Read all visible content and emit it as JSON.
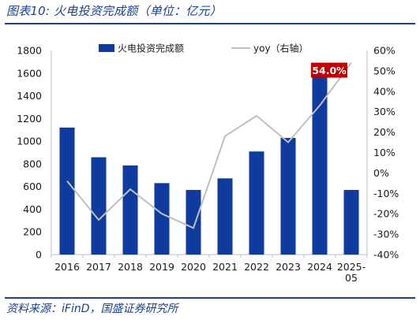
{
  "figure": {
    "title": "图表10:  火电投资完成额（单位：亿元）",
    "source": "资料来源：iFinD，国盛证券研究所"
  },
  "chart_data": {
    "type": "bar",
    "categories": [
      "2016",
      "2017",
      "2018",
      "2019",
      "2020",
      "2021",
      "2022",
      "2023",
      "2024",
      "2025-05"
    ],
    "category_labels": [
      [
        "2016"
      ],
      [
        "2017"
      ],
      [
        "2018"
      ],
      [
        "2019"
      ],
      [
        "2020"
      ],
      [
        "2021"
      ],
      [
        "2022"
      ],
      [
        "2023"
      ],
      [
        "2024"
      ],
      [
        "2025-",
        "05"
      ]
    ],
    "series": [
      {
        "name": "火电投资完成额",
        "type": "bar",
        "axis": "left",
        "color": "#0f3a9e",
        "values": [
          1120,
          858,
          786,
          630,
          570,
          672,
          909,
          1029,
          1590,
          570
        ]
      },
      {
        "name": "yoy（右轴）",
        "type": "line",
        "axis": "right",
        "color": "#bfbfbf",
        "values": [
          -4,
          -23,
          -8,
          -20,
          -27,
          18,
          28,
          15,
          33,
          54
        ]
      }
    ],
    "y_left": {
      "min": 0,
      "max": 1800,
      "ticks": [
        "0",
        "200",
        "400",
        "600",
        "800",
        "1000",
        "1200",
        "1400",
        "1600",
        "1800"
      ]
    },
    "y_right": {
      "min": -40,
      "max": 60,
      "unit": "%",
      "ticks": [
        "-40%",
        "-30%",
        "-20%",
        "-10%",
        "0%",
        "10%",
        "20%",
        "30%",
        "40%",
        "50%",
        "60%"
      ]
    },
    "annotation": {
      "text": "54.0%",
      "series": "yoy（右轴）",
      "category": "2025-05",
      "bg_color": "#c00000",
      "text_color": "#ffffff"
    },
    "legend": {
      "position": "top"
    },
    "grid": false
  }
}
